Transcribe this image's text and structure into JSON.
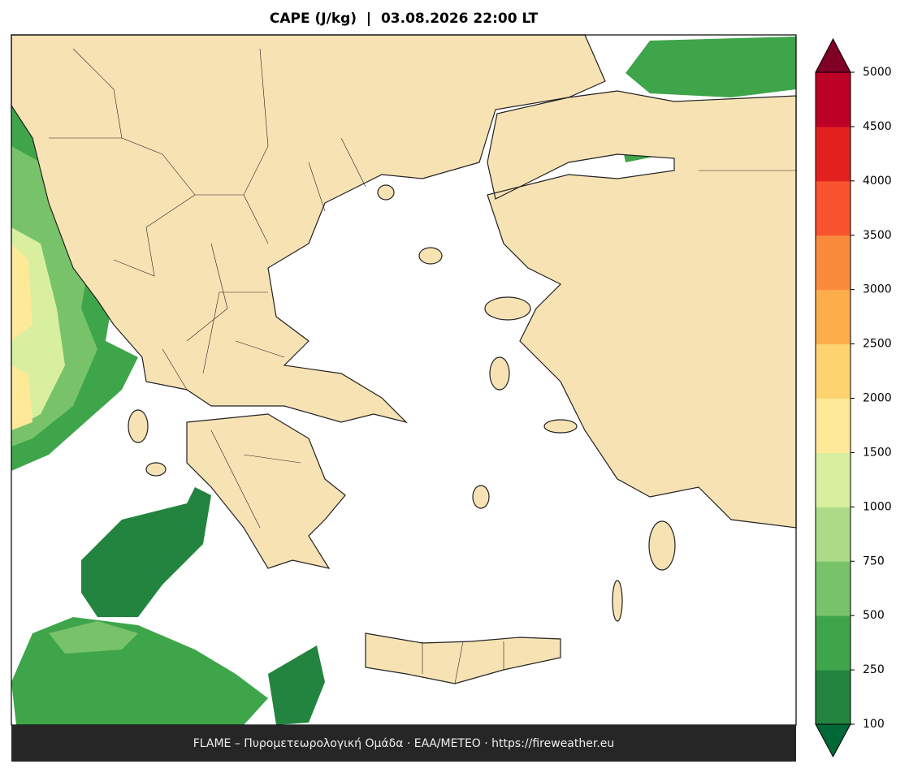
{
  "title": "CAPE (J/kg)  |  03.08.2026 22:00 LT",
  "footer": "FLAME – Πυρομετεωρολογική Ομάδα · ΕΑΑ/METEO · https://fireweather.eu",
  "colorbar": {
    "ticks": [
      100,
      250,
      500,
      750,
      1000,
      1500,
      2000,
      2500,
      3000,
      3500,
      4000,
      4500,
      5000
    ],
    "colors": [
      "#23843f",
      "#3fa54a",
      "#78c36a",
      "#acdb88",
      "#d8ef9f",
      "#fee999",
      "#fdd370",
      "#fdae4b",
      "#fb8b3c",
      "#f7532f",
      "#e2211e",
      "#bd0026"
    ],
    "under_color": "#006837",
    "over_color": "#800026"
  }
}
